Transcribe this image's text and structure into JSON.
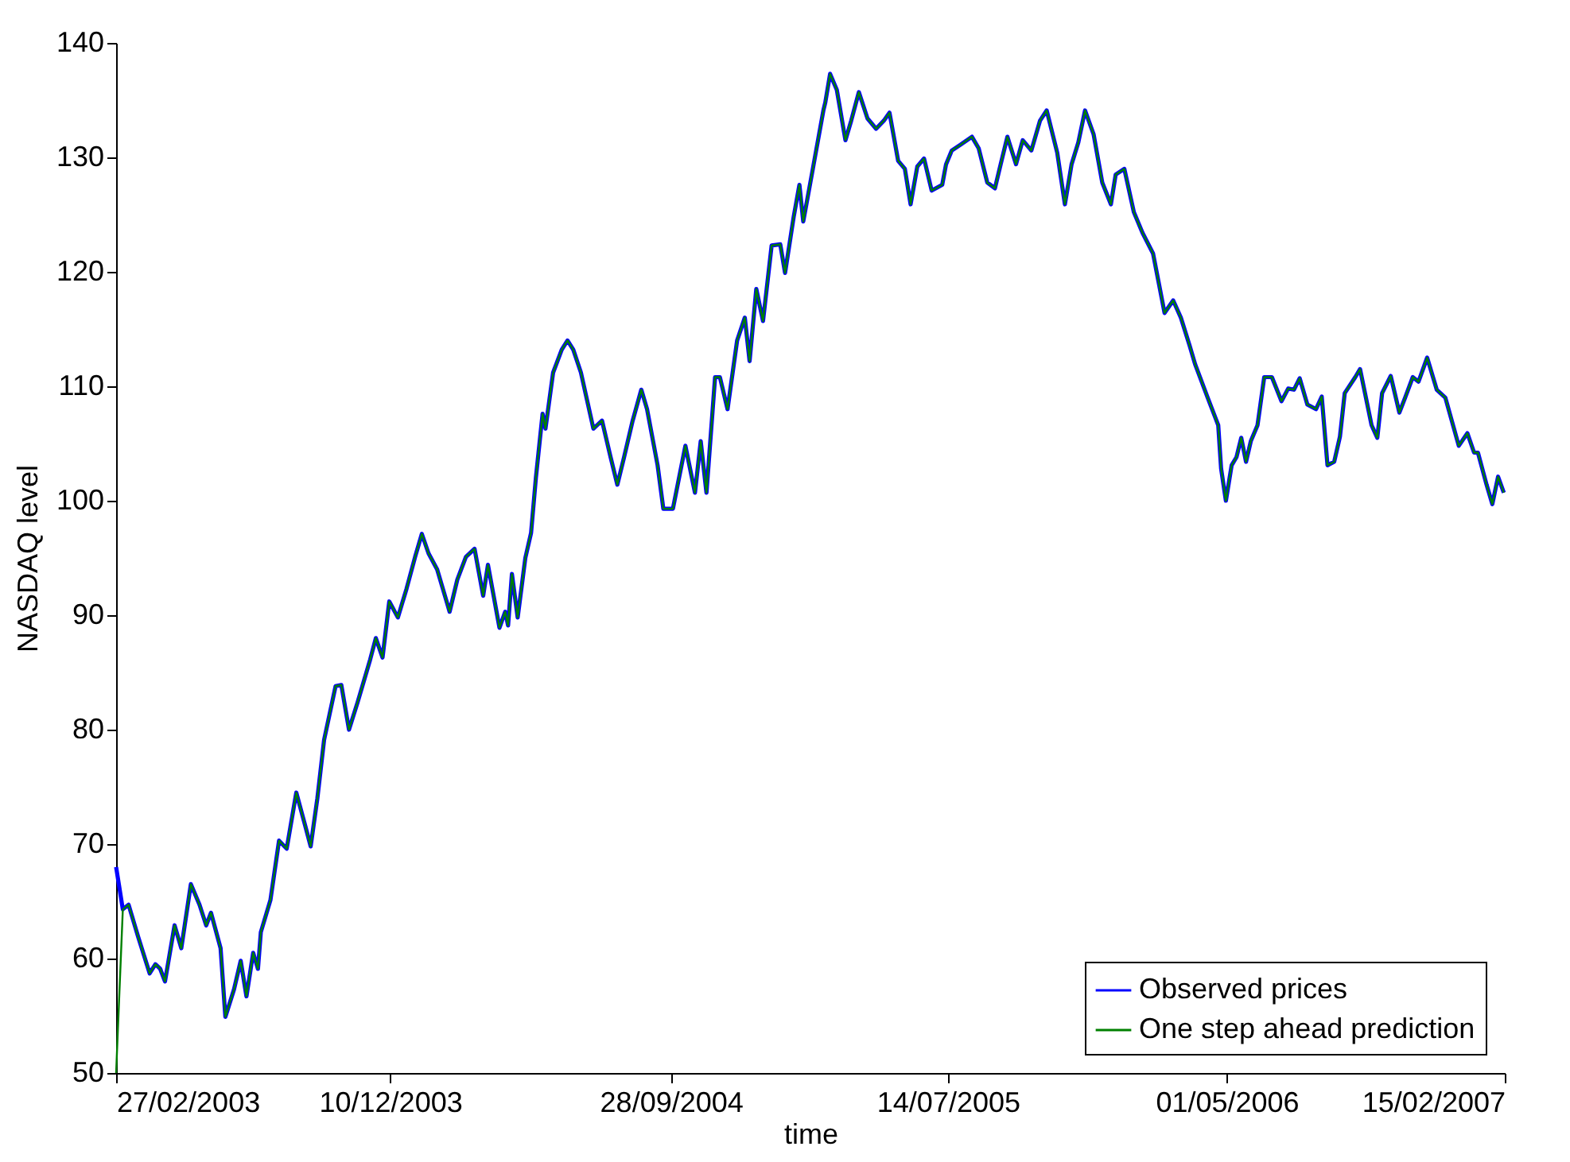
{
  "chart_data": {
    "type": "line",
    "xlabel": "time",
    "ylabel": "NASDAQ level",
    "x": [
      "2003-02-27",
      "2003-03-06",
      "2003-03-12",
      "2003-03-22",
      "2003-04-03",
      "2003-04-09",
      "2003-04-14",
      "2003-04-19",
      "2003-04-29",
      "2003-05-06",
      "2003-05-16",
      "2003-05-25",
      "2003-06-01",
      "2003-06-06",
      "2003-06-16",
      "2003-06-21",
      "2003-06-30",
      "2003-07-07",
      "2003-07-13",
      "2003-07-20",
      "2003-07-25",
      "2003-07-28",
      "2003-08-07",
      "2003-08-16",
      "2003-08-24",
      "2003-09-03",
      "2003-09-12",
      "2003-09-18",
      "2003-09-25",
      "2003-10-02",
      "2003-10-14",
      "2003-10-20",
      "2003-10-28",
      "2003-11-06",
      "2003-11-19",
      "2003-11-25",
      "2003-12-02",
      "2003-12-09",
      "2003-12-18",
      "2003-12-27",
      "2004-01-05",
      "2004-01-12",
      "2004-01-19",
      "2004-01-28",
      "2004-02-10",
      "2004-02-18",
      "2004-02-27",
      "2004-03-07",
      "2004-03-16",
      "2004-03-21",
      "2004-04-02",
      "2004-04-08",
      "2004-04-11",
      "2004-04-15",
      "2004-04-21",
      "2004-04-29",
      "2004-05-05",
      "2004-05-10",
      "2004-05-17",
      "2004-05-20",
      "2004-05-28",
      "2004-06-06",
      "2004-06-12",
      "2004-06-18",
      "2004-06-26",
      "2004-07-09",
      "2004-07-18",
      "2004-07-27",
      "2004-08-03",
      "2004-08-10",
      "2004-08-19",
      "2004-08-28",
      "2004-09-03",
      "2004-09-14",
      "2004-09-20",
      "2004-09-30",
      "2004-10-13",
      "2004-10-23",
      "2004-10-29",
      "2004-11-04",
      "2004-11-13",
      "2004-11-18",
      "2004-11-26",
      "2004-12-06",
      "2004-12-14",
      "2004-12-19",
      "2004-12-26",
      "2005-01-02",
      "2005-01-11",
      "2005-01-20",
      "2005-01-25",
      "2005-02-03",
      "2005-02-09",
      "2005-02-13",
      "2005-02-23",
      "2005-03-06",
      "2005-03-08",
      "2005-03-13",
      "2005-03-20",
      "2005-03-29",
      "2005-04-04",
      "2005-04-12",
      "2005-04-21",
      "2005-04-30",
      "2005-05-08",
      "2005-05-14",
      "2005-05-23",
      "2005-05-30",
      "2005-06-05",
      "2005-06-12",
      "2005-06-19",
      "2005-06-27",
      "2005-07-08",
      "2005-07-12",
      "2005-07-18",
      "2005-07-27",
      "2005-08-08",
      "2005-08-15",
      "2005-08-24",
      "2005-09-01",
      "2005-09-07",
      "2005-09-14",
      "2005-09-23",
      "2005-09-30",
      "2005-10-09",
      "2005-10-18",
      "2005-10-25",
      "2005-11-05",
      "2005-11-13",
      "2005-11-20",
      "2005-11-27",
      "2005-12-04",
      "2005-12-13",
      "2005-12-22",
      "2005-12-31",
      "2006-01-05",
      "2006-01-14",
      "2006-01-24",
      "2006-02-02",
      "2006-02-13",
      "2006-02-25",
      "2006-03-06",
      "2006-03-14",
      "2006-03-23",
      "2006-03-29",
      "2006-04-11",
      "2006-04-22",
      "2006-04-25",
      "2006-04-30",
      "2006-05-06",
      "2006-05-11",
      "2006-05-16",
      "2006-05-21",
      "2006-05-26",
      "2006-06-02",
      "2006-06-09",
      "2006-06-17",
      "2006-06-27",
      "2006-07-04",
      "2006-07-10",
      "2006-07-16",
      "2006-07-24",
      "2006-08-02",
      "2006-08-08",
      "2006-08-14",
      "2006-08-21",
      "2006-08-27",
      "2006-09-01",
      "2006-09-12",
      "2006-09-17",
      "2006-09-29",
      "2006-10-05",
      "2006-10-10",
      "2006-10-19",
      "2006-10-28",
      "2006-11-03",
      "2006-11-11",
      "2006-11-17",
      "2006-11-26",
      "2006-12-06",
      "2006-12-15",
      "2006-12-29",
      "2007-01-07",
      "2007-01-14",
      "2007-01-18",
      "2007-01-27",
      "2007-02-02",
      "2007-02-08",
      "2007-02-14"
    ],
    "series": [
      {
        "name": "Observed prices",
        "color": "#0000ff",
        "values": [
          68,
          64.3,
          64.7,
          61.9,
          58.7,
          59.5,
          59.1,
          58.0,
          62.9,
          60.9,
          66.5,
          64.7,
          62.9,
          64.0,
          60.9,
          54.9,
          57.3,
          59.8,
          56.7,
          60.5,
          59.1,
          62.3,
          65.1,
          70.3,
          69.6,
          74.5,
          71.7,
          69.8,
          74.0,
          79.1,
          83.8,
          83.9,
          80.0,
          82.4,
          86.1,
          88.0,
          86.3,
          91.2,
          89.8,
          92.3,
          95.1,
          97.1,
          95.4,
          94.0,
          90.3,
          93.1,
          95.1,
          95.8,
          91.7,
          94.4,
          88.9,
          90.3,
          89.1,
          93.6,
          89.8,
          95.0,
          97.2,
          102.0,
          107.6,
          106.3,
          111.2,
          113.2,
          114.0,
          113.2,
          111.2,
          106.3,
          107.0,
          103.8,
          101.4,
          103.8,
          107.0,
          109.7,
          108.0,
          103.1,
          99.3,
          99.3,
          104.8,
          100.7,
          105.2,
          100.7,
          110.8,
          110.8,
          108.0,
          114.0,
          116.0,
          112.2,
          118.5,
          115.7,
          122.3,
          122.4,
          119.9,
          124.8,
          127.6,
          124.4,
          129.0,
          134.1,
          134.8,
          137.3,
          135.9,
          131.5,
          133.2,
          135.7,
          133.4,
          132.5,
          133.2,
          133.9,
          129.7,
          129.0,
          125.9,
          129.2,
          129.9,
          127.1,
          127.6,
          129.4,
          130.6,
          131.1,
          131.8,
          130.8,
          127.8,
          127.3,
          129.4,
          131.8,
          129.4,
          131.5,
          130.6,
          133.2,
          134.1,
          130.4,
          125.9,
          129.4,
          131.3,
          134.1,
          132.0,
          127.8,
          125.9,
          128.5,
          129.0,
          125.2,
          123.4,
          121.6,
          116.4,
          117.5,
          116.0,
          113.6,
          111.9,
          109.0,
          106.6,
          102.8,
          100.0,
          103.1,
          103.8,
          105.5,
          103.4,
          105.2,
          106.6,
          110.8,
          110.8,
          108.7,
          109.8,
          109.7,
          110.7,
          108.4,
          108.0,
          109.1,
          103.1,
          103.4,
          105.6,
          109.4,
          110.8,
          111.5,
          106.6,
          105.5,
          109.4,
          110.9,
          107.7,
          109.0,
          110.8,
          110.4,
          112.5,
          109.7,
          109.0,
          104.8,
          105.9,
          104.2,
          104.2,
          101.4,
          99.7,
          102.1,
          100.7
        ]
      },
      {
        "name": "One step ahead prediction",
        "color": "#008000",
        "values": [
          50,
          64.3,
          64.7,
          61.9,
          58.7,
          59.5,
          59.1,
          58.0,
          62.9,
          60.9,
          66.5,
          64.7,
          62.9,
          64.0,
          60.9,
          54.9,
          57.3,
          59.8,
          56.7,
          60.5,
          59.1,
          62.3,
          65.1,
          70.3,
          69.6,
          74.5,
          71.7,
          69.8,
          74.0,
          79.1,
          83.8,
          83.9,
          80.0,
          82.4,
          86.1,
          88.0,
          86.3,
          91.2,
          89.8,
          92.3,
          95.1,
          97.1,
          95.4,
          94.0,
          90.3,
          93.1,
          95.1,
          95.8,
          91.7,
          94.4,
          88.9,
          90.3,
          89.1,
          93.6,
          89.8,
          95.0,
          97.2,
          102.0,
          107.6,
          106.3,
          111.2,
          113.2,
          114.0,
          113.2,
          111.2,
          106.3,
          107.0,
          103.8,
          101.4,
          103.8,
          107.0,
          109.7,
          108.0,
          103.1,
          99.3,
          99.3,
          104.8,
          100.7,
          105.2,
          100.7,
          110.8,
          110.8,
          108.0,
          114.0,
          116.0,
          112.2,
          118.5,
          115.7,
          122.3,
          122.4,
          119.9,
          124.8,
          127.6,
          124.4,
          129.0,
          134.1,
          134.8,
          137.3,
          135.9,
          131.5,
          133.2,
          135.7,
          133.4,
          132.5,
          133.2,
          133.9,
          129.7,
          129.0,
          125.9,
          129.2,
          129.9,
          127.1,
          127.6,
          129.4,
          130.6,
          131.1,
          131.8,
          130.8,
          127.8,
          127.3,
          129.4,
          131.8,
          129.4,
          131.5,
          130.6,
          133.2,
          134.1,
          130.4,
          125.9,
          129.4,
          131.3,
          134.1,
          132.0,
          127.8,
          125.9,
          128.5,
          129.0,
          125.2,
          123.4,
          121.6,
          116.4,
          117.5,
          116.0,
          113.6,
          111.9,
          109.0,
          106.6,
          102.8,
          100.0,
          103.1,
          103.8,
          105.5,
          103.4,
          105.2,
          106.6,
          110.8,
          110.8,
          108.7,
          109.8,
          109.7,
          110.7,
          108.4,
          108.0,
          109.1,
          103.1,
          103.4,
          105.6,
          109.4,
          110.8,
          111.5,
          106.6,
          105.5,
          109.4,
          110.9,
          107.7,
          109.0,
          110.8,
          110.4,
          112.5,
          109.7,
          109.0,
          104.8,
          105.9,
          104.2,
          104.2,
          101.4,
          99.7,
          102.1,
          100.7
        ]
      }
    ],
    "xlim": [
      "2003-02-27",
      "2007-02-15"
    ],
    "xticks": [
      {
        "value": "2003-02-27",
        "label": "27/02/2003"
      },
      {
        "value": "2003-12-10",
        "label": "10/12/2003"
      },
      {
        "value": "2004-09-28",
        "label": "28/09/2004"
      },
      {
        "value": "2005-07-14",
        "label": "14/07/2005"
      },
      {
        "value": "2006-05-01",
        "label": "01/05/2006"
      },
      {
        "value": "2007-02-15",
        "label": "15/02/2007"
      }
    ],
    "ylim": [
      50,
      140
    ],
    "yticks": [
      50,
      60,
      70,
      80,
      90,
      100,
      110,
      120,
      130,
      140
    ],
    "legend": "bottom right",
    "grid": false,
    "marker": "none",
    "line_style": "solid"
  }
}
